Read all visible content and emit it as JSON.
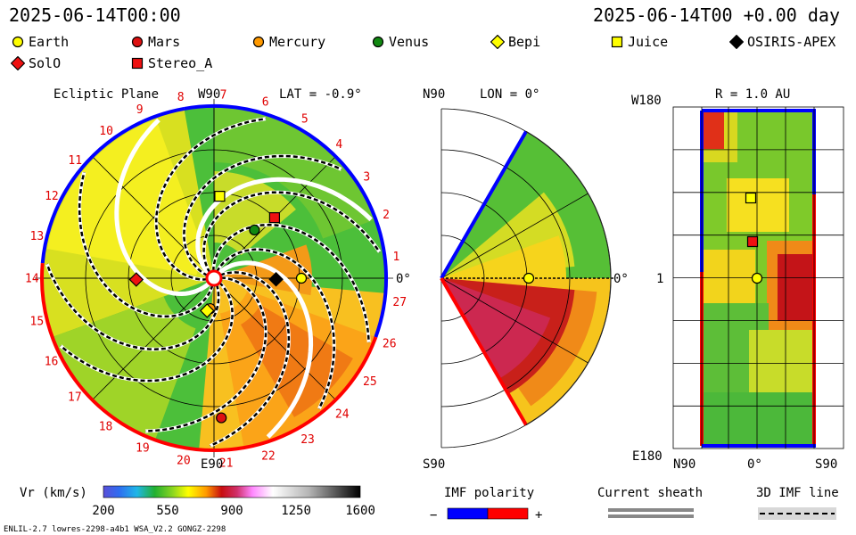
{
  "header": {
    "time_left": "2025-06-14T00:00",
    "time_right": "2025-06-14T00 +0.00 day"
  },
  "legend": [
    {
      "label": "Earth",
      "shape": "circle",
      "color": "#ffff00",
      "icon": "earth-circle-icon"
    },
    {
      "label": "Mars",
      "shape": "circle",
      "color": "#dd1111",
      "icon": "mars-circle-icon"
    },
    {
      "label": "Mercury",
      "shape": "circle",
      "color": "#ff9900",
      "icon": "mercury-circle-icon"
    },
    {
      "label": "Venus",
      "shape": "circle",
      "color": "#118811",
      "icon": "venus-circle-icon"
    },
    {
      "label": "Bepi",
      "shape": "diamond",
      "color": "#ffff00",
      "icon": "bepi-diamond-icon"
    },
    {
      "label": "Juice",
      "shape": "square",
      "color": "#ffff00",
      "icon": "juice-square-icon"
    },
    {
      "label": "OSIRIS-APEX",
      "shape": "diamond",
      "color": "#000000",
      "icon": "osiris-diamond-icon"
    },
    {
      "label": "SolO",
      "shape": "diamond",
      "color": "#ee1111",
      "icon": "solo-diamond-icon"
    },
    {
      "label": "Stereo_A",
      "shape": "square",
      "color": "#ee1111",
      "icon": "stereo-square-icon"
    }
  ],
  "chart_data": [
    {
      "type": "heatmap",
      "panel": "ecliptic",
      "title": "Ecliptic Plane",
      "lat_label": "LAT = -0.9°",
      "top_label": "W90",
      "bottom_label": "E90",
      "right_label": "0°",
      "sector_numbers": [
        "1",
        "2",
        "3",
        "4",
        "5",
        "6",
        "7",
        "8",
        "9",
        "10",
        "11",
        "12",
        "13",
        "14",
        "15",
        "16",
        "17",
        "18",
        "19",
        "20",
        "21",
        "22",
        "23",
        "24",
        "25",
        "26",
        "27"
      ],
      "bodies": [
        {
          "name": "Earth",
          "r_au": 1.0,
          "lon_deg": 0
        },
        {
          "name": "Venus",
          "r_au": 0.72,
          "lon_deg": 50
        },
        {
          "name": "Stereo_A",
          "r_au": 0.98,
          "lon_deg": 45
        },
        {
          "name": "Juice",
          "r_au": 0.94,
          "lon_deg": 86
        },
        {
          "name": "SolO",
          "r_au": 0.89,
          "lon_deg": 181
        },
        {
          "name": "Mercury",
          "r_au": 0.35,
          "lon_deg": 263
        },
        {
          "name": "Bepi",
          "r_au": 0.38,
          "lon_deg": 258
        },
        {
          "name": "OSIRIS-APEX",
          "r_au": 0.71,
          "lon_deg": -1
        },
        {
          "name": "Mars",
          "r_au": 1.6,
          "lon_deg": 273
        }
      ]
    },
    {
      "type": "heatmap",
      "panel": "meridional",
      "title": "LON = 0°",
      "top_label": "N90",
      "bottom_label": "S90",
      "right_label": "0°",
      "bodies": [
        {
          "name": "Earth",
          "r_au": 1.0,
          "lat_deg": 0
        }
      ]
    },
    {
      "type": "heatmap",
      "panel": "lonlat",
      "title": "R = 1.0 AU",
      "top_left_label": "W180",
      "mid_left_label": "1",
      "bottom_left_label": "E180",
      "x_labels": [
        "N90",
        "0°",
        "S90"
      ],
      "bodies": [
        {
          "name": "Juice",
          "shape": "square"
        },
        {
          "name": "Stereo_A",
          "shape": "square"
        },
        {
          "name": "Earth",
          "shape": "circle"
        }
      ]
    }
  ],
  "colorbar": {
    "label": "Vr (km/s)",
    "ticks": [
      "200",
      "550",
      "900",
      "1250",
      "1600"
    ],
    "min": 200,
    "max": 1600
  },
  "imf_polarity": {
    "label": "IMF polarity",
    "minus": "−",
    "plus": "+",
    "negative_color": "#0000ff",
    "positive_color": "#ff0000"
  },
  "current_sheath": {
    "label": "Current sheath"
  },
  "imf_line": {
    "label": "3D IMF line"
  },
  "footer": {
    "left": "ENLIL-2.7 lowres-2298-a4b1 WSA_V2.2 GONGZ-2298"
  }
}
